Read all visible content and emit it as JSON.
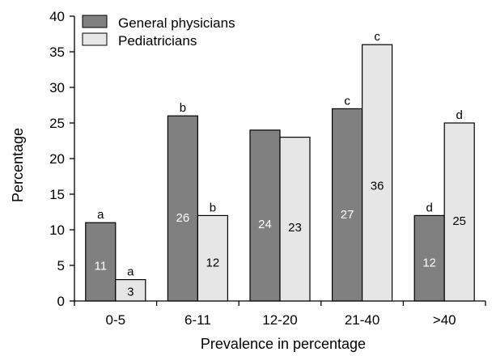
{
  "chart_data": {
    "type": "bar",
    "title": "",
    "xlabel": "Prevalence in percentage",
    "ylabel": "Percentage",
    "ylim": [
      0,
      40
    ],
    "yticks": [
      0,
      5,
      10,
      15,
      20,
      25,
      30,
      35,
      40
    ],
    "categories": [
      "0-5",
      "6-11",
      "12-20",
      "21-40",
      ">40"
    ],
    "legend_position": "top-left",
    "grid": false,
    "series": [
      {
        "name": "General physicians",
        "color": "#808080",
        "values": [
          11,
          26,
          24,
          27,
          12
        ],
        "value_labels": [
          "11",
          "26",
          "24",
          "27",
          "12"
        ],
        "value_label_color": "#ffffff",
        "sig_letters": [
          "a",
          "b",
          "",
          "c",
          "d"
        ]
      },
      {
        "name": "Pediatricians",
        "color": "#e6e6e6",
        "values": [
          3,
          12,
          23,
          36,
          25
        ],
        "value_labels": [
          "3",
          "12",
          "23",
          "36",
          "25"
        ],
        "value_label_color": "#000000",
        "sig_letters": [
          "a",
          "b",
          "",
          "c",
          "d"
        ]
      }
    ]
  }
}
